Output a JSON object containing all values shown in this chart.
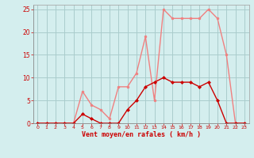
{
  "x": [
    0,
    1,
    2,
    3,
    4,
    5,
    6,
    7,
    8,
    9,
    10,
    11,
    12,
    13,
    14,
    15,
    16,
    17,
    18,
    19,
    20,
    21,
    22,
    23
  ],
  "rafales": [
    0,
    0,
    0,
    0,
    0,
    7,
    4,
    3,
    1,
    8,
    8,
    11,
    19,
    5,
    25,
    23,
    23,
    23,
    23,
    25,
    23,
    15,
    0,
    0
  ],
  "moyen": [
    0,
    0,
    0,
    0,
    0,
    2,
    1,
    0,
    0,
    0,
    3,
    5,
    8,
    9,
    10,
    9,
    9,
    9,
    8,
    9,
    5,
    0,
    0,
    0
  ],
  "color_rafales": "#f08080",
  "color_moyen": "#cc0000",
  "bg_color": "#d4eeee",
  "grid_color": "#aacccc",
  "xlabel": "Vent moyen/en rafales ( km/h )",
  "ylim": [
    0,
    26
  ],
  "xlim_min": -0.5,
  "xlim_max": 23.5,
  "yticks": [
    0,
    5,
    10,
    15,
    20,
    25
  ],
  "xticks": [
    0,
    1,
    2,
    3,
    4,
    5,
    6,
    7,
    8,
    9,
    10,
    11,
    12,
    13,
    14,
    15,
    16,
    17,
    18,
    19,
    20,
    21,
    22,
    23
  ]
}
